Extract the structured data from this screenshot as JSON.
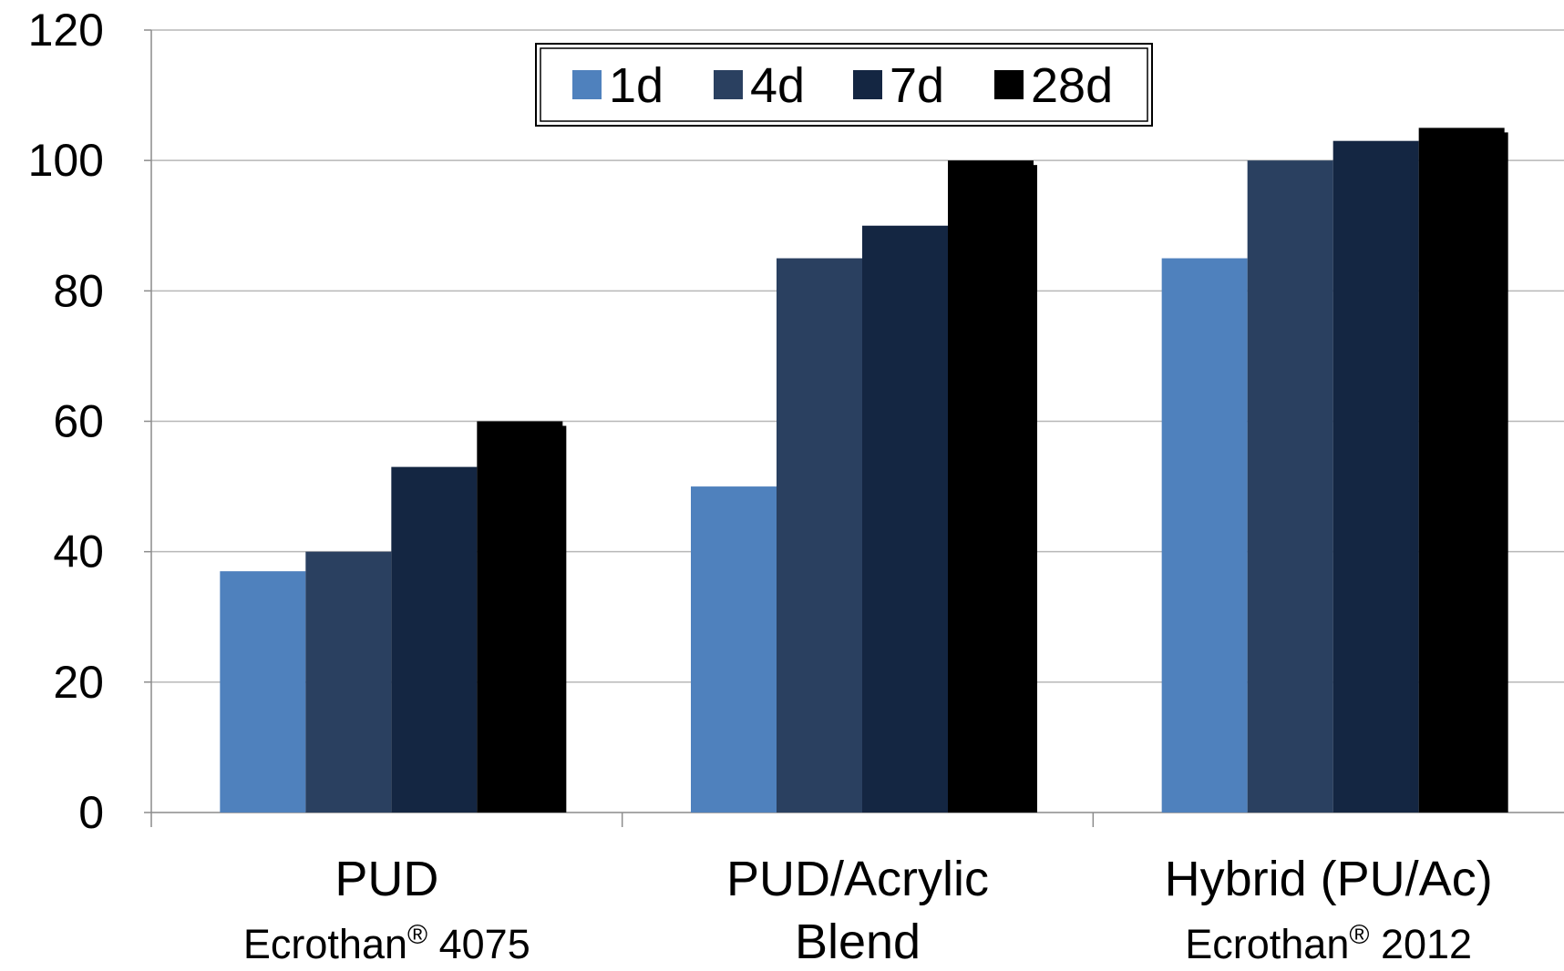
{
  "chart_data": {
    "type": "bar",
    "categories": [
      {
        "label": "PUD",
        "sublabel_main": "Ecrothan",
        "sublabel_mark": "®",
        "sublabel_tail": " 4075"
      },
      {
        "label": "PUD/Acrylic",
        "sublabel_main": "Blend",
        "sublabel_mark": "",
        "sublabel_tail": ""
      },
      {
        "label": "Hybrid (PU/Ac)",
        "sublabel_main": "Ecrothan",
        "sublabel_mark": "®",
        "sublabel_tail": " 2012"
      }
    ],
    "series": [
      {
        "name": "1d",
        "color": "#4F81BD",
        "values": [
          37,
          50,
          85
        ]
      },
      {
        "name": "4d",
        "color": "#2A4060",
        "values": [
          40,
          85,
          100
        ]
      },
      {
        "name": "7d",
        "color": "#142642",
        "values": [
          53,
          90,
          103
        ]
      },
      {
        "name": "28d",
        "color": "#000000",
        "values": [
          60,
          100,
          105
        ]
      }
    ],
    "ylim": [
      0,
      120
    ],
    "yticks": [
      "0",
      "20",
      "40",
      "60",
      "80",
      "100",
      "120"
    ],
    "grid": true,
    "legend_position": "top-center",
    "title": "",
    "xlabel": "",
    "ylabel": ""
  }
}
